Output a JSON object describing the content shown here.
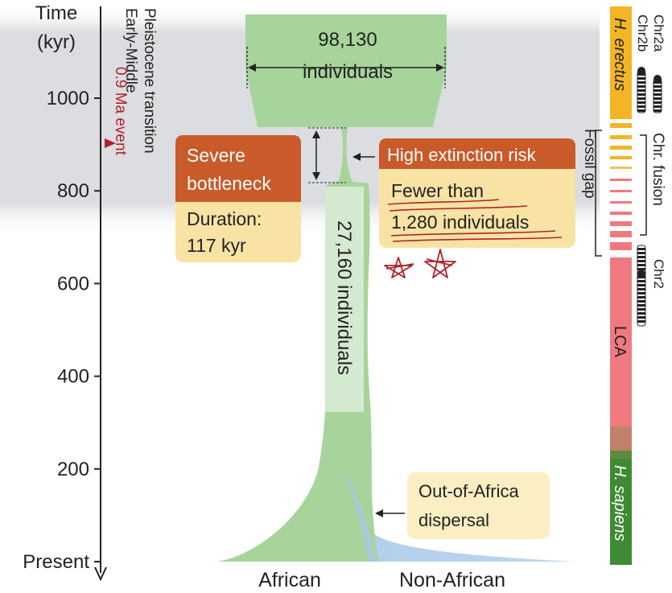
{
  "axis": {
    "title_line1": "Time",
    "title_line2": "(kyr)",
    "ticks": [
      {
        "label": "1000",
        "value": 1000
      },
      {
        "label": "800",
        "value": 800
      },
      {
        "label": "600",
        "value": 600
      },
      {
        "label": "400",
        "value": 400
      },
      {
        "label": "200",
        "value": 200
      },
      {
        "label": "Present",
        "value": 0
      }
    ]
  },
  "transition": {
    "line1": "Early-Middle",
    "line2": "Pleistocene transition",
    "event": "0.9 Ma event"
  },
  "ancestral": {
    "count": "98,130",
    "unit": "individuals"
  },
  "bottleneck_box": {
    "title_line1": "Severe",
    "title_line2": "bottleneck",
    "detail_line1": "Duration:",
    "detail_line2": "117 kyr"
  },
  "risk_box": {
    "title": "High extinction risk",
    "detail_line1": "Fewer than",
    "detail_line2": "1,280 individuals"
  },
  "trunk_label": "27,160 individuals",
  "dispersal_box": {
    "line1": "Out-of-Africa",
    "line2": "dispersal"
  },
  "population_labels": {
    "african": "African",
    "non_african": "Non-African"
  },
  "side_bar": {
    "top_species": "H. erectus",
    "middle": "LCA",
    "bottom_species": "H. sapiens",
    "fossil_gap": "Fossil gap",
    "chr_fusion": "Chr. fusion",
    "chr2a": "Chr2a",
    "chr2b": "Chr2b",
    "chr2": "Chr2"
  },
  "colors": {
    "population": "#a7d49b",
    "trunk_label_bg": "#d4ead0",
    "non_african": "#a8c8e8",
    "box_header": "#c95a2a",
    "box_body": "#f8e3a4",
    "erectus": "#f3b526",
    "lca": "#ee7a7f",
    "sapiens": "#3f8a34",
    "event_red": "#b0222b",
    "band_gray": "#dcdde0"
  }
}
